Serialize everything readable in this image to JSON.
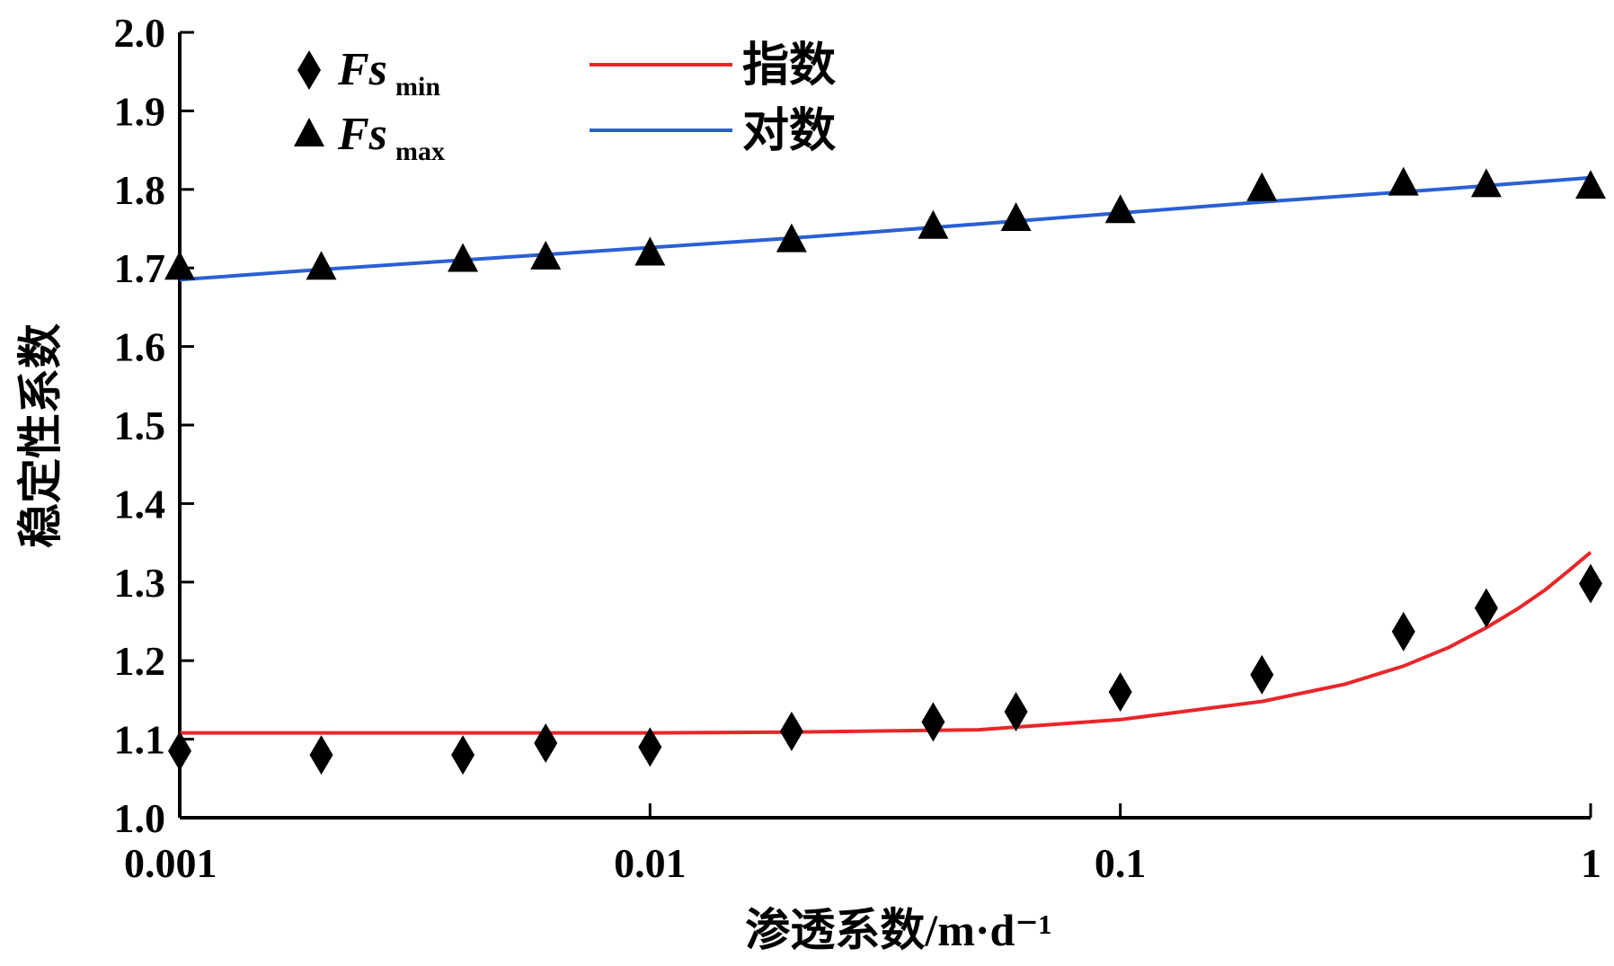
{
  "chart_data": {
    "type": "scatter",
    "xscale": "log",
    "xlim": [
      0.001,
      1
    ],
    "ylim": [
      1.0,
      2.0
    ],
    "xlabel": "渗透系数/m·d⁻¹",
    "ylabel": "稳定性系数",
    "xticks": [
      0.001,
      0.01,
      0.1,
      1
    ],
    "xtick_labels": [
      "0.001",
      "0.01",
      "0.1",
      "1"
    ],
    "yticks": [
      1.0,
      1.1,
      1.2,
      1.3,
      1.4,
      1.5,
      1.6,
      1.7,
      1.8,
      1.9,
      2.0
    ],
    "ytick_labels": [
      "1.0",
      "1.1",
      "1.2",
      "1.3",
      "1.4",
      "1.5",
      "1.6",
      "1.7",
      "1.8",
      "1.9",
      "2.0"
    ],
    "grid": false,
    "legend_position": "top-left",
    "scatter_series": [
      {
        "name_main": "Fs",
        "name_sub": "min",
        "marker": "diamond",
        "color": "#000000",
        "x": [
          0.001,
          0.002,
          0.004,
          0.006,
          0.01,
          0.02,
          0.04,
          0.06,
          0.1,
          0.2,
          0.4,
          0.6,
          1
        ],
        "y": [
          1.085,
          1.08,
          1.08,
          1.095,
          1.09,
          1.11,
          1.122,
          1.135,
          1.16,
          1.182,
          1.237,
          1.267,
          1.298
        ]
      },
      {
        "name_main": "Fs",
        "name_sub": "max",
        "marker": "triangle",
        "color": "#000000",
        "x": [
          0.001,
          0.002,
          0.004,
          0.006,
          0.01,
          0.02,
          0.04,
          0.06,
          0.1,
          0.2,
          0.4,
          0.6,
          1
        ],
        "y": [
          1.7,
          1.7,
          1.71,
          1.713,
          1.718,
          1.735,
          1.752,
          1.762,
          1.772,
          1.8,
          1.807,
          1.805,
          1.803
        ]
      }
    ],
    "fit_series": [
      {
        "name": "指数",
        "color": "#e8262a",
        "x": [
          0.001,
          0.01,
          0.02,
          0.05,
          0.1,
          0.2,
          0.3,
          0.4,
          0.5,
          0.6,
          0.7,
          0.8,
          0.9,
          1
        ],
        "y": [
          1.108,
          1.108,
          1.109,
          1.112,
          1.125,
          1.148,
          1.17,
          1.193,
          1.217,
          1.242,
          1.266,
          1.29,
          1.315,
          1.338
        ]
      },
      {
        "name": "对数",
        "color": "#2a5fd6",
        "x": [
          0.001,
          0.002,
          0.005,
          0.01,
          0.02,
          0.05,
          0.1,
          0.2,
          0.5,
          1
        ],
        "y": [
          1.685,
          1.698,
          1.714,
          1.726,
          1.738,
          1.756,
          1.77,
          1.784,
          1.801,
          1.815
        ]
      }
    ]
  }
}
